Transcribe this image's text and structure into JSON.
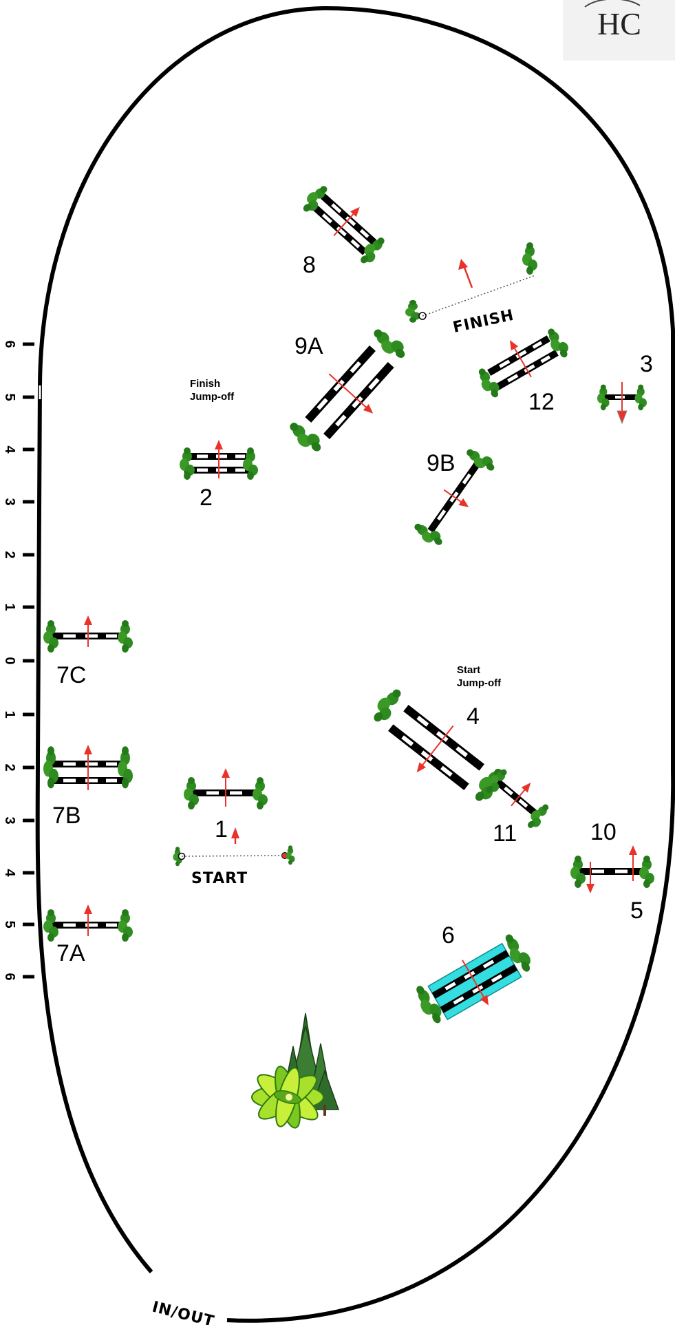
{
  "labels": {
    "n1": "1",
    "n2": "2",
    "n3": "3",
    "n4": "4",
    "n5": "5",
    "n6": "6",
    "n7a": "7A",
    "n7b": "7B",
    "n7c": "7C",
    "n8": "8",
    "n9a": "9A",
    "n9b": "9B",
    "n10": "10",
    "n11": "11",
    "n12": "12",
    "start": "START",
    "finish": "FINISH",
    "in_out": "IN/OUT",
    "finish_jumpoff_1": "Finish",
    "finish_jumpoff_2": "Jump-off",
    "start_jumpoff_1": "Start",
    "start_jumpoff_2": "Jump-off",
    "logo": "HC"
  },
  "scale": {
    "ticks": [
      "6",
      "5",
      "4",
      "3",
      "2",
      "1",
      "0",
      "1",
      "2",
      "3",
      "4",
      "5",
      "6"
    ]
  },
  "colors": {
    "rail_black": "#000000",
    "rail_white": "#ffffff",
    "greenery": "#2e8b1f",
    "arrow": "#e8322a",
    "water": "#33dde0"
  }
}
